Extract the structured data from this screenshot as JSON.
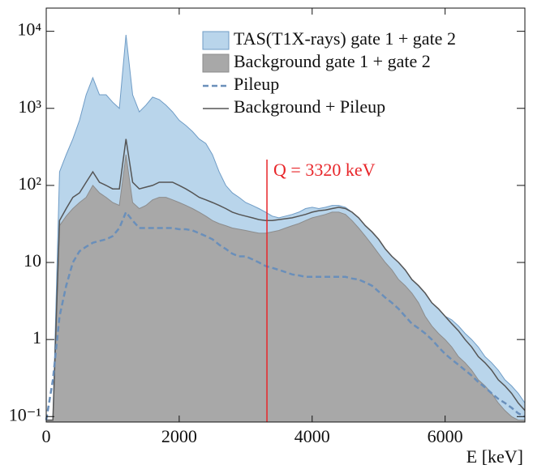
{
  "chart_data": {
    "type": "area",
    "xlabel": "E [keV]",
    "x": [
      0,
      100,
      200,
      300,
      400,
      500,
      600,
      700,
      800,
      900,
      1000,
      1100,
      1200,
      1300,
      1400,
      1500,
      1600,
      1700,
      1800,
      1900,
      2000,
      2100,
      2200,
      2300,
      2400,
      2500,
      2600,
      2700,
      2800,
      2900,
      3000,
      3100,
      3200,
      3300,
      3400,
      3500,
      3600,
      3700,
      3800,
      3900,
      4000,
      4100,
      4200,
      4300,
      4400,
      4500,
      4600,
      4700,
      4800,
      4900,
      5000,
      5100,
      5200,
      5300,
      5400,
      5500,
      5600,
      5700,
      5800,
      5900,
      6000,
      6100,
      6200,
      6300,
      6400,
      6500,
      6600,
      6700,
      6800,
      6900,
      7000,
      7100,
      7200
    ],
    "series": [
      {
        "name": "TAS(T1X-rays) gate 1 + gate 2",
        "style": "area",
        "color": "#b9d5eb",
        "line_color": "#6f9cc6",
        "values": [
          0.09,
          0.09,
          150,
          250,
          400,
          700,
          1500,
          2500,
          1500,
          1500,
          1200,
          1000,
          9000,
          1500,
          900,
          1100,
          1400,
          1300,
          1100,
          900,
          700,
          600,
          500,
          400,
          350,
          250,
          150,
          100,
          80,
          70,
          60,
          55,
          50,
          45,
          40,
          38,
          40,
          42,
          45,
          50,
          52,
          50,
          52,
          55,
          55,
          52,
          45,
          38,
          30,
          25,
          20,
          15,
          12,
          10,
          8,
          6,
          5,
          4,
          3,
          2.5,
          2,
          1.8,
          1.5,
          1.2,
          1,
          0.8,
          0.6,
          0.5,
          0.4,
          0.3,
          0.25,
          0.2,
          0.15
        ]
      },
      {
        "name": "Background gate 1 + gate 2",
        "style": "area",
        "color": "#a8a8a8",
        "line_color": "#8c8c8c",
        "values": [
          0.09,
          0.09,
          30,
          40,
          50,
          60,
          70,
          100,
          80,
          70,
          60,
          55,
          250,
          60,
          50,
          55,
          65,
          70,
          70,
          65,
          60,
          55,
          50,
          45,
          40,
          35,
          32,
          30,
          28,
          27,
          26,
          25,
          24,
          24,
          25,
          26,
          28,
          30,
          32,
          35,
          38,
          40,
          42,
          45,
          45,
          42,
          35,
          28,
          22,
          17,
          13,
          10,
          8,
          6,
          5,
          4,
          3,
          2,
          1.5,
          1.2,
          1,
          0.8,
          0.6,
          0.5,
          0.4,
          0.3,
          0.25,
          0.2,
          0.15,
          0.12,
          0.1,
          0.09,
          0.09
        ]
      },
      {
        "name": "Pileup",
        "style": "dashed",
        "color": "#6a8fba",
        "values": [
          0.09,
          0.3,
          2,
          5,
          10,
          14,
          16,
          18,
          19,
          20,
          22,
          28,
          45,
          35,
          28,
          28,
          28,
          28,
          28,
          28,
          27,
          27,
          26,
          24,
          22,
          20,
          17,
          15,
          13,
          12,
          12,
          11,
          10,
          9,
          8.5,
          8,
          7.5,
          7,
          6.8,
          6.5,
          6.5,
          6.5,
          6.5,
          6.5,
          6.5,
          6.5,
          6.2,
          6,
          5.5,
          5,
          4.2,
          3.5,
          3,
          2.5,
          2,
          1.6,
          1.4,
          1.2,
          1,
          0.8,
          0.65,
          0.55,
          0.47,
          0.4,
          0.34,
          0.28,
          0.24,
          0.2,
          0.17,
          0.15,
          0.13,
          0.11,
          0.1
        ]
      },
      {
        "name": "Background + Pileup",
        "style": "line",
        "color": "#555555",
        "values": [
          0.09,
          0.09,
          35,
          50,
          70,
          80,
          110,
          150,
          110,
          100,
          90,
          90,
          400,
          110,
          90,
          95,
          100,
          110,
          110,
          110,
          100,
          90,
          80,
          70,
          65,
          60,
          55,
          50,
          45,
          42,
          40,
          38,
          36,
          35,
          35,
          36,
          37,
          38,
          40,
          42,
          45,
          47,
          48,
          50,
          52,
          50,
          45,
          38,
          30,
          25,
          20,
          15,
          12,
          10,
          8,
          6,
          5,
          4,
          3,
          2.5,
          2,
          1.6,
          1.3,
          1,
          0.8,
          0.6,
          0.5,
          0.4,
          0.3,
          0.25,
          0.2,
          0.15,
          0.12
        ]
      }
    ],
    "xlim": [
      0,
      7200
    ],
    "xticks": [
      0,
      2000,
      4000,
      6000
    ],
    "ylim": [
      0.085,
      20000
    ],
    "log_y": true,
    "yticks": [
      {
        "value": 0.1,
        "label": "10⁻¹"
      },
      1,
      10,
      {
        "value": 100,
        "label": "10²"
      },
      {
        "value": 1000,
        "label": "10³"
      },
      {
        "value": 10000,
        "label": "10⁴"
      }
    ],
    "annotations": [
      {
        "text": "Q = 3320 keV",
        "x": 3320,
        "color": "#e8262a"
      }
    ],
    "legend": "upper right"
  }
}
